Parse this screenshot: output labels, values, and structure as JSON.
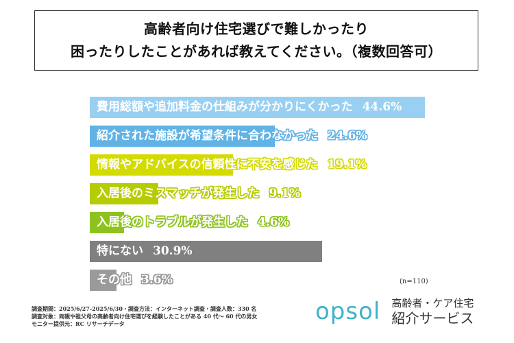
{
  "title": {
    "line1": "高齢者向け住宅選びで難しかったり",
    "line2": "困ったりしたことがあれば教えてください。（複数回答可）"
  },
  "chart_data": {
    "type": "bar",
    "orientation": "horizontal",
    "xlim": [
      0,
      50
    ],
    "unit": "%",
    "categories": [
      "費用総額や追加料金の仕組みが分かりにくかった",
      "紹介された施設が希望条件に合わなかった",
      "情報やアドバイスの信頼性に不安を感じた",
      "入居後のミスマッチが発生した",
      "入居後のトラブルが発生した",
      "特にない",
      "その他"
    ],
    "values": [
      44.6,
      24.6,
      19.1,
      9.1,
      4.6,
      30.9,
      3.6
    ],
    "value_labels": [
      "44.6%",
      "24.6%",
      "19.1%",
      "9.1%",
      "4.6%",
      "30.9%",
      "3.6%"
    ],
    "colors": [
      "#99d0f2",
      "#62b3e5",
      "#d4db00",
      "#b5cc00",
      "#8ec31f",
      "#808080",
      "#9a9a9a"
    ],
    "sample": "(n=110)"
  },
  "notes": [
    "調査期間：2025/6/27-2025/6/30・調査方法：インターネット調査・調査人数：330 名",
    "調査対象：両親や祖父母の高齢者向け住宅選びを経験したことがある 40 代～ 60 代の男女",
    "モニター提供元：RC リサーチデータ"
  ],
  "logo": {
    "brand": "opsol",
    "line1": "高齢者・ケア住宅",
    "line2": "紹介サービス"
  }
}
